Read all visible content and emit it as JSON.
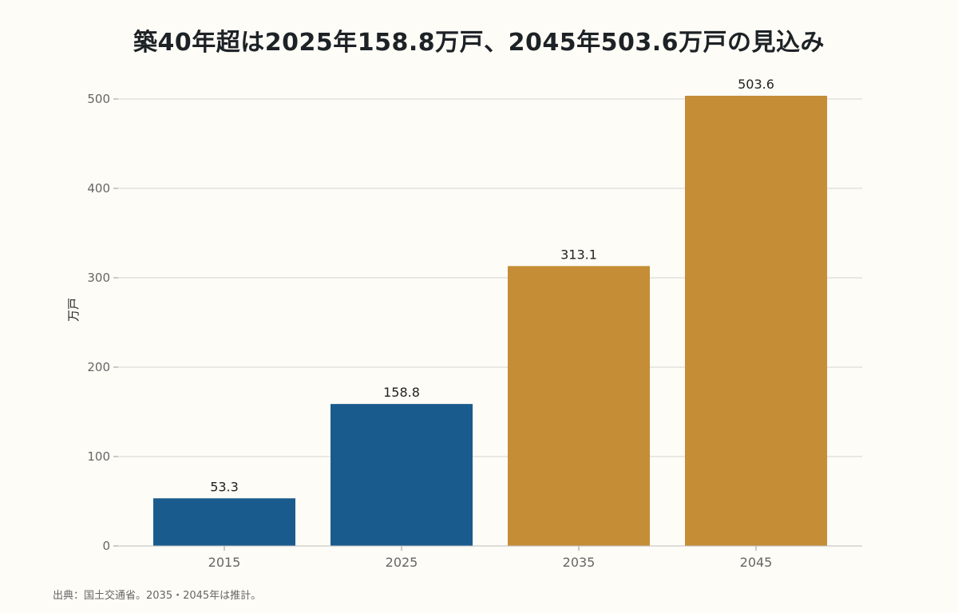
{
  "chart_data": {
    "type": "bar",
    "title": "築40年超は2025年158.8万戸、2045年503.6万戸の見込み",
    "categories": [
      "2015",
      "2025",
      "2035",
      "2045"
    ],
    "values": [
      53.3,
      158.8,
      313.1,
      503.6
    ],
    "value_labels": [
      "53.3",
      "158.8",
      "313.1",
      "503.6"
    ],
    "bar_colors": [
      "#1a5b8e",
      "#1a5b8e",
      "#c48d36",
      "#c48d36"
    ],
    "xlabel": "",
    "ylabel": "万戸",
    "ylim": [
      0,
      520
    ],
    "yticks": [
      0,
      100,
      200,
      300,
      400,
      500
    ],
    "ytick_labels": [
      "0",
      "100",
      "200",
      "300",
      "400",
      "500"
    ],
    "grid": "horizontal",
    "legend": "none"
  },
  "source_note": "出典：国土交通省。2035・2045年は推計。",
  "colors": {
    "background": "#fdfcf6",
    "actual": "#1a5b8e",
    "projection": "#c48d36",
    "grid": "#d4d4d4",
    "tick_text": "#666666",
    "label_text": "#222222"
  }
}
